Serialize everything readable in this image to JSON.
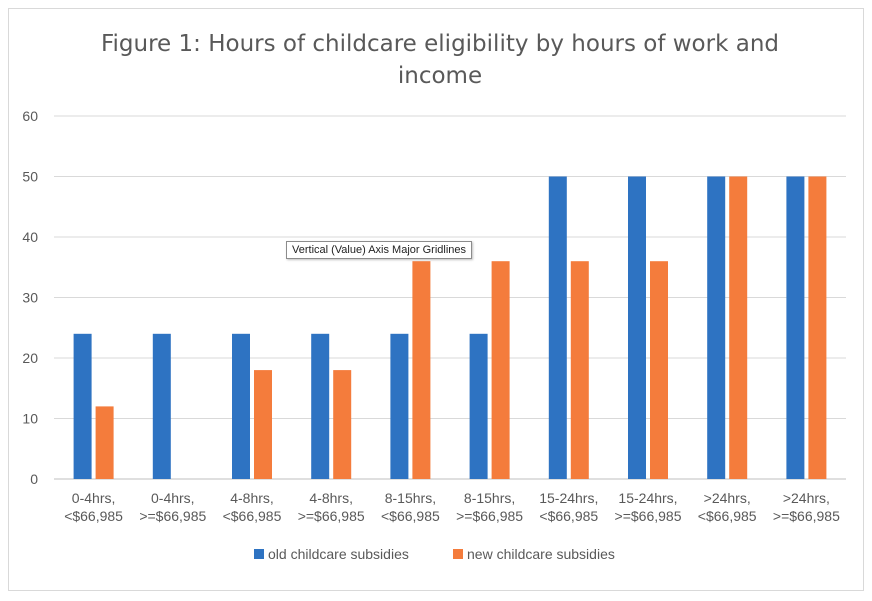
{
  "chart_data": {
    "type": "bar",
    "title": "Figure 1: Hours of childcare eligibility by hours of work and income",
    "categories": [
      [
        "0-4hrs,",
        "<$66,985"
      ],
      [
        "0-4hrs,",
        ">=$66,985"
      ],
      [
        "4-8hrs,",
        "<$66,985"
      ],
      [
        "4-8hrs,",
        ">=$66,985"
      ],
      [
        "8-15hrs,",
        "<$66,985"
      ],
      [
        "8-15hrs,",
        ">=$66,985"
      ],
      [
        "15-24hrs,",
        "<$66,985"
      ],
      [
        "15-24hrs,",
        ">=$66,985"
      ],
      [
        ">24hrs,",
        "<$66,985"
      ],
      [
        ">24hrs,",
        ">=$66,985"
      ]
    ],
    "series": [
      {
        "name": "old childcare subsidies",
        "color": "#2e73c2",
        "values": [
          24,
          24,
          24,
          24,
          24,
          24,
          50,
          50,
          50,
          50
        ]
      },
      {
        "name": "new childcare subsidies",
        "color": "#f47c3c",
        "values": [
          12,
          0,
          18,
          18,
          36,
          36,
          36,
          36,
          50,
          50
        ]
      }
    ],
    "ylim": [
      0,
      60
    ],
    "yticks": [
      0,
      10,
      20,
      30,
      40,
      50,
      60
    ],
    "grid": true,
    "legend_position": "bottom"
  },
  "tooltip": {
    "text": "Vertical (Value) Axis Major Gridlines"
  }
}
